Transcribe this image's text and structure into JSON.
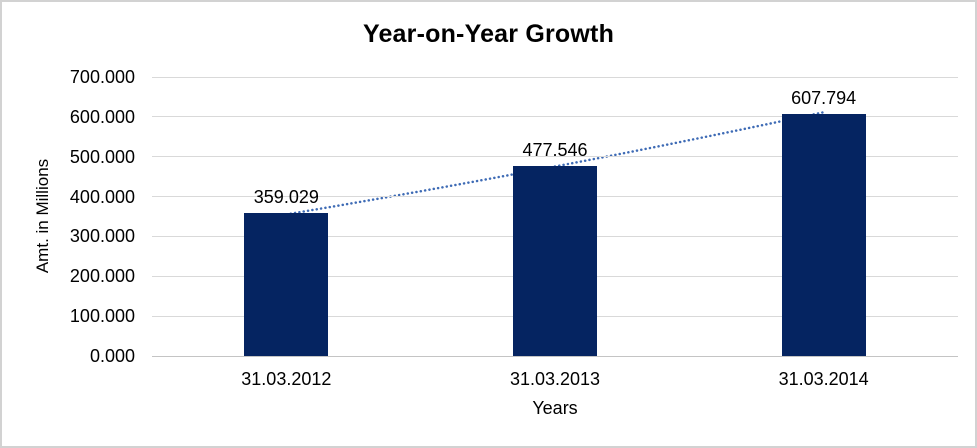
{
  "chart_data": {
    "type": "bar",
    "title": "Year-on-Year Growth",
    "xlabel": "Years",
    "ylabel": "Amt. in Millions",
    "categories": [
      "31.03.2012",
      "31.03.2013",
      "31.03.2014"
    ],
    "values": [
      359.029,
      477.546,
      607.794
    ],
    "data_labels": [
      "359.029",
      "477.546",
      "607.794"
    ],
    "ylim": [
      0,
      700
    ],
    "ytick_step": 100,
    "ytick_labels": [
      "0.000",
      "100.000",
      "200.000",
      "300.000",
      "400.000",
      "500.000",
      "600.000",
      "700.000"
    ],
    "grid": true,
    "legend_position": "none",
    "bar_color": "#052461",
    "trendline_color": "#3e6bb5",
    "gridline_color": "#d9d9d9",
    "axis_line_color": "#c4c4c4"
  }
}
